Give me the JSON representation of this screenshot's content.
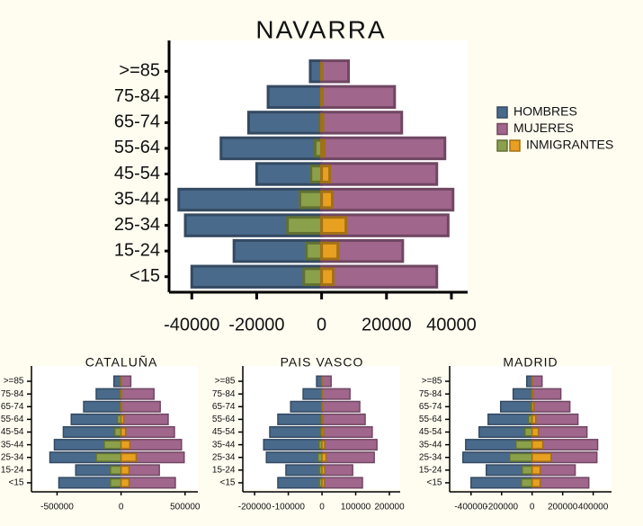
{
  "chart_data": [
    {
      "type": "pyramid",
      "title": "NAVARRA",
      "categories": [
        "<15",
        "15-24",
        "25-34",
        "35-44",
        "45-54",
        "55-64",
        "65-74",
        "75-84",
        ">=85"
      ],
      "series": [
        {
          "name": "HOMBRES",
          "color": "#4a6a8c",
          "values": [
            -40000,
            -27000,
            -42000,
            -44000,
            -20000,
            -31000,
            -22500,
            -16500,
            -3500
          ]
        },
        {
          "name": "MUJERES",
          "color": "#a0668c",
          "values": [
            35500,
            25000,
            39000,
            40500,
            35500,
            38000,
            24700,
            22500,
            8300
          ]
        },
        {
          "name": "INMIGRANTES",
          "color": "#8aa04a",
          "values": [
            -5500,
            -4700,
            -10500,
            -6700,
            -3300,
            -2000,
            -500,
            -300,
            -200
          ]
        },
        {
          "color": "#e8a020",
          "values": [
            3600,
            5000,
            7500,
            3300,
            2500,
            800,
            400,
            300,
            200
          ]
        }
      ],
      "xlim": [
        -47000,
        45000
      ],
      "xticks": [
        -40000,
        -20000,
        0,
        20000,
        40000
      ],
      "legend": "right"
    },
    {
      "type": "pyramid",
      "title": "CATALUÑA",
      "categories": [
        "<15",
        "15-24",
        "25-34",
        "35-44",
        "45-54",
        "55-64",
        "65-74",
        "75-84",
        ">=85"
      ],
      "series": [
        {
          "color": "#4a6a8c",
          "values": [
            -486000,
            -354000,
            -556000,
            -521000,
            -451000,
            -389000,
            -292000,
            -194000,
            -56000
          ]
        },
        {
          "color": "#a0668c",
          "values": [
            424000,
            299000,
            493000,
            472000,
            417000,
            368000,
            306000,
            257000,
            76000
          ]
        },
        {
          "color": "#8aa04a",
          "values": [
            -83000,
            -83000,
            -194000,
            -132000,
            -49000,
            -28000,
            -10000,
            -10000,
            -5000
          ]
        },
        {
          "color": "#e8a020",
          "values": [
            62000,
            62000,
            118000,
            69000,
            35000,
            21000,
            5000,
            5000,
            3000
          ]
        }
      ],
      "xlim": [
        -700000,
        600000
      ],
      "xticks": [
        -500000,
        0,
        500000
      ]
    },
    {
      "type": "pyramid",
      "title": "PAIS VASCO",
      "categories": [
        "<15",
        "15-24",
        "25-34",
        "35-44",
        "45-54",
        "55-64",
        "65-74",
        "75-84",
        ">=85"
      ],
      "series": [
        {
          "color": "#4a6a8c",
          "values": [
            -131000,
            -107000,
            -165000,
            -173000,
            -155000,
            -131000,
            -93000,
            -56000,
            -16000
          ]
        },
        {
          "color": "#a0668c",
          "values": [
            120000,
            91000,
            155000,
            163000,
            149000,
            128000,
            112000,
            83000,
            27000
          ]
        },
        {
          "color": "#8aa04a",
          "values": [
            -8000,
            -8000,
            -12000,
            -9000,
            -5000,
            -3000,
            -1000,
            -1000,
            -500
          ]
        },
        {
          "color": "#e8a020",
          "values": [
            7000,
            8000,
            12000,
            8000,
            5000,
            3000,
            1000,
            1000,
            500
          ]
        }
      ],
      "xlim": [
        -235000,
        232000
      ],
      "xticks": [
        -200000,
        -100000,
        0,
        100000,
        200000
      ]
    },
    {
      "type": "pyramid",
      "title": "MADRID",
      "categories": [
        "<15",
        "15-24",
        "25-34",
        "35-44",
        "45-54",
        "55-64",
        "65-74",
        "75-84",
        ">=85"
      ],
      "series": [
        {
          "color": "#4a6a8c",
          "values": [
            -400000,
            -300000,
            -453000,
            -435000,
            -347000,
            -288000,
            -206000,
            -124000,
            -35000
          ]
        },
        {
          "color": "#a0668c",
          "values": [
            371000,
            282000,
            424000,
            429000,
            359000,
            300000,
            247000,
            188000,
            65000
          ]
        },
        {
          "color": "#8aa04a",
          "values": [
            -70000,
            -65000,
            -147000,
            -106000,
            -47000,
            -24000,
            -8000,
            -4000,
            -2000
          ]
        },
        {
          "color": "#e8a020",
          "values": [
            53000,
            53000,
            124000,
            70000,
            41000,
            24000,
            12000,
            6000,
            2000
          ]
        }
      ],
      "xlim": [
        -540000,
        520000
      ],
      "xticks": [
        -400000,
        -200000,
        0,
        200000,
        400000
      ]
    }
  ]
}
